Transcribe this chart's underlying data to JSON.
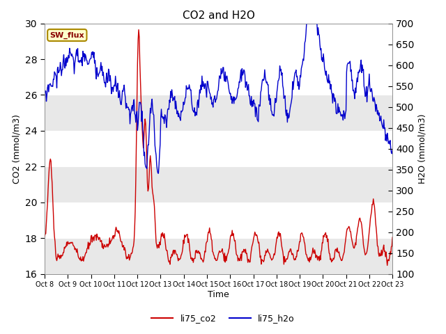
{
  "title": "CO2 and H2O",
  "xlabel": "Time",
  "ylabel_left": "CO2 (mmol/m3)",
  "ylabel_right": "H2O (mmol/m3)",
  "ylim_left": [
    16,
    30
  ],
  "ylim_right": [
    100,
    700
  ],
  "yticks_left": [
    16,
    18,
    20,
    22,
    24,
    26,
    28,
    30
  ],
  "yticks_right": [
    100,
    150,
    200,
    250,
    300,
    350,
    400,
    450,
    500,
    550,
    600,
    650,
    700
  ],
  "xtick_labels": [
    "Oct 8",
    "Oct 9",
    "Oct 10",
    "Oct 11",
    "Oct 12",
    "Oct 13",
    "Oct 14",
    "Oct 15",
    "Oct 16",
    "Oct 17",
    "Oct 18",
    "Oct 19",
    "Oct 20",
    "Oct 21",
    "Oct 22",
    "Oct 23"
  ],
  "color_co2": "#cc0000",
  "color_h2o": "#0000cc",
  "legend_labels": [
    "li75_co2",
    "li75_h2o"
  ],
  "annotation_text": "SW_flux",
  "annotation_fg": "#880000",
  "annotation_bg": "#ffffcc",
  "annotation_edge": "#aa8800",
  "band_light": "#e8e8e8",
  "band_dark": "#d0d0d0",
  "fig_bg": "#f0f0f0",
  "n_points": 600
}
